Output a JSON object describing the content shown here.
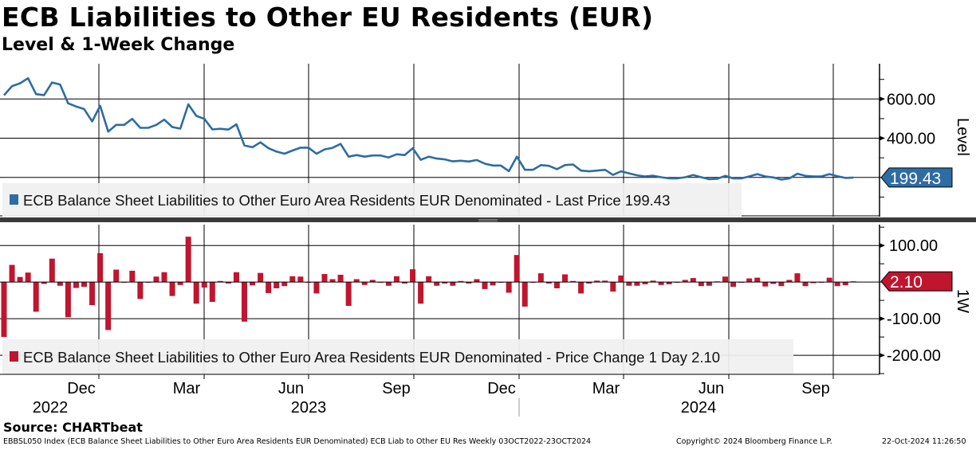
{
  "header": {
    "title": "ECB Liabilities to Other EU Residents (EUR)",
    "subtitle": "Level & 1-Week Change"
  },
  "chart_data": [
    {
      "type": "line",
      "panel": "top",
      "ylabel": "Level",
      "ylim": [
        0,
        780
      ],
      "yticks": [
        {
          "value": 600,
          "label": "600.00"
        },
        {
          "value": 400,
          "label": "400.00"
        }
      ],
      "grid": true,
      "color": "#2e6ca4",
      "legend": "ECB Balance Sheet Liabilities to Other Euro Area Residents EUR Denominated - Last Price 199.43",
      "last_value_label": "199.43",
      "values": [
        619,
        666,
        680,
        706,
        625,
        620,
        684,
        674,
        578,
        562,
        549,
        486,
        565,
        434,
        468,
        468,
        499,
        453,
        453,
        468,
        495,
        457,
        449,
        573,
        514,
        499,
        445,
        448,
        444,
        471,
        363,
        354,
        379,
        349,
        332,
        321,
        337,
        352,
        352,
        321,
        343,
        351,
        371,
        306,
        314,
        306,
        312,
        312,
        302,
        318,
        314,
        349,
        290,
        306,
        296,
        292,
        282,
        285,
        281,
        289,
        270,
        261,
        261,
        232,
        306,
        239,
        239,
        263,
        259,
        242,
        263,
        266,
        235,
        231,
        235,
        239,
        213,
        231,
        221,
        211,
        205,
        209,
        201,
        195,
        195,
        201,
        212,
        201,
        191,
        193,
        208,
        195,
        195,
        205,
        217,
        205,
        200,
        189,
        195,
        219,
        208,
        205,
        205,
        217,
        206,
        197.33,
        199.43
      ]
    },
    {
      "type": "bar",
      "panel": "bottom",
      "ylabel": "1W",
      "ylim": [
        -252,
        157
      ],
      "yticks": [
        {
          "value": 100,
          "label": "100.00"
        },
        {
          "value": -100,
          "label": "-100.00"
        },
        {
          "value": -200,
          "label": "-200.00"
        }
      ],
      "grid": true,
      "color": "#c0152f",
      "legend": "ECB Balance Sheet Liabilities to Other Euro Area Residents EUR Denominated - Price Change 1 Day 2.10",
      "last_value_label": "2.10",
      "values": [
        -150,
        47,
        14,
        26,
        -81,
        -5,
        64,
        -10,
        -96,
        -16,
        -13,
        -63,
        79,
        -131,
        34,
        0,
        31,
        -46,
        0,
        15,
        27,
        -38,
        -8,
        124,
        -59,
        -15,
        -54,
        3,
        -4,
        27,
        -108,
        -9,
        25,
        -30,
        -17,
        -11,
        16,
        15,
        0,
        -31,
        22,
        8,
        20,
        -65,
        8,
        -8,
        6,
        0,
        -10,
        16,
        -4,
        35,
        -59,
        16,
        -10,
        -4,
        -10,
        3,
        -4,
        8,
        -19,
        -9,
        0,
        -29,
        74,
        -67,
        0,
        24,
        -4,
        -17,
        21,
        3,
        -31,
        -4,
        4,
        4,
        -26,
        18,
        -10,
        -10,
        -6,
        4,
        -8,
        -6,
        0,
        6,
        11,
        -11,
        -10,
        2,
        15,
        -13,
        0,
        10,
        12,
        -12,
        -5,
        -11,
        6,
        24,
        -11,
        -3,
        0,
        12,
        -11,
        -8.67,
        2.1
      ]
    }
  ],
  "x_axis": {
    "months": [
      "Dec",
      "Mar",
      "Jun",
      "Sep",
      "Dec",
      "Mar",
      "Jun",
      "Sep"
    ],
    "years": [
      "2022",
      "2023",
      "2024"
    ]
  },
  "footer": {
    "source": "Source: CHARTbeat",
    "description": "EBBSL050 Index (ECB Balance Sheet Liabilities to Other Euro Area Residents EUR Denominated) ECB Liab to Other EU Res  Weekly 03OCT2022-23OCT2024",
    "copyright": "Copyright© 2024 Bloomberg Finance L.P.",
    "timestamp": "22-Oct-2024 11:26:50"
  }
}
